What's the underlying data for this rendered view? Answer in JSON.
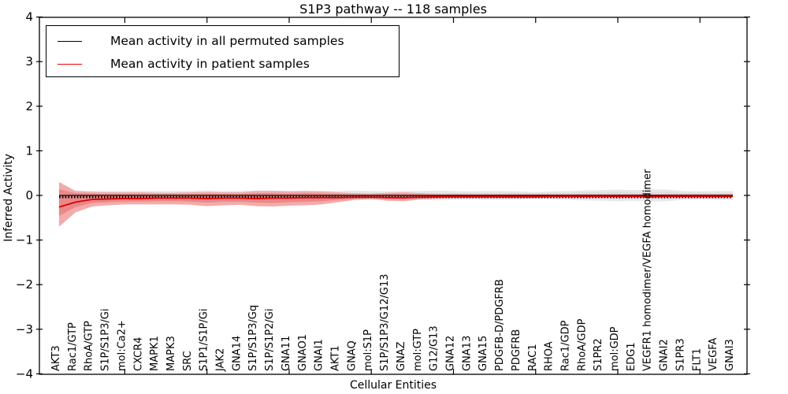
{
  "chart_data": {
    "type": "line",
    "title": "S1P3 pathway -- 118 samples",
    "xlabel": "Cellular Entities",
    "ylabel": "Inferred Activity",
    "ylim": [
      -4,
      4
    ],
    "y_ticks": [
      "4",
      "3",
      "2",
      "1",
      "0",
      "−1",
      "−2",
      "−3",
      "−4"
    ],
    "y_tick_values": [
      4,
      3,
      2,
      1,
      0,
      -1,
      -2,
      -3,
      -4
    ],
    "x_tick_interval": 5,
    "grid": false,
    "legend_position": "upper left",
    "categories": [
      "AKT3",
      "Rac1/GTP",
      "RhoA/GTP",
      "S1P/S1P3/Gi",
      "mol:Ca2+",
      "CXCR4",
      "MAPK1",
      "MAPK3",
      "SRC",
      "S1P1/S1P/Gi",
      "JAK2",
      "GNA14",
      "S1P/S1P3/Gq",
      "S1P/S1P2/Gi",
      "GNA11",
      "GNAO1",
      "GNAI1",
      "AKT1",
      "GNAQ",
      "mol:S1P",
      "S1P/S1P3/G12/G13",
      "GNAZ",
      "mol:GTP",
      "G12/G13",
      "GNA12",
      "GNA13",
      "GNA15",
      "PDGFB-D/PDGFRB",
      "PDGFRB",
      "RAC1",
      "RHOA",
      "Rac1/GDP",
      "RhoA/GDP",
      "S1PR2",
      "mol:GDP",
      "EDG1",
      "VEGFR1 homodimer/VEGFA homodimer",
      "GNAI2",
      "S1PR3",
      "FLT1",
      "VEGFA",
      "GNAI3"
    ],
    "series": [
      {
        "name": "Mean activity in all permuted samples",
        "color": "#000000",
        "values": [
          0,
          0,
          0,
          0,
          0,
          0,
          0,
          0,
          0,
          0,
          0,
          0,
          0,
          0,
          0,
          0,
          0,
          0,
          0,
          0,
          0,
          0,
          0,
          0,
          0,
          0,
          0,
          0,
          0,
          0,
          0,
          0,
          0,
          0,
          0,
          0,
          0,
          0,
          0,
          0,
          0,
          0
        ]
      },
      {
        "name": "Mean activity in patient samples",
        "color": "#dd0000",
        "values": [
          -0.26,
          -0.15,
          -0.09,
          -0.08,
          -0.07,
          -0.07,
          -0.06,
          -0.06,
          -0.06,
          -0.07,
          -0.06,
          -0.06,
          -0.07,
          -0.06,
          -0.06,
          -0.05,
          -0.05,
          -0.05,
          -0.04,
          -0.04,
          -0.05,
          -0.05,
          -0.04,
          -0.03,
          -0.03,
          -0.03,
          -0.03,
          -0.03,
          -0.03,
          -0.03,
          -0.02,
          -0.02,
          -0.02,
          -0.02,
          -0.02,
          -0.02,
          -0.03,
          -0.02,
          -0.02,
          -0.02,
          -0.02,
          -0.02
        ]
      }
    ],
    "bands": [
      {
        "name": "permuted-samples-outer-band",
        "color": "#e8e8e8",
        "hi": [
          0.12,
          0.11,
          0.1,
          0.1,
          0.1,
          0.1,
          0.1,
          0.1,
          0.1,
          0.11,
          0.1,
          0.1,
          0.11,
          0.11,
          0.1,
          0.1,
          0.1,
          0.1,
          0.11,
          0.1,
          0.09,
          0.1,
          0.1,
          0.11,
          0.1,
          0.09,
          0.1,
          0.1,
          0.09,
          0.08,
          0.09,
          0.1,
          0.11,
          0.12,
          0.13,
          0.12,
          0.14,
          0.13,
          0.1,
          0.09,
          0.1,
          0.1
        ],
        "lo": [
          -0.12,
          -0.11,
          -0.1,
          -0.1,
          -0.1,
          -0.1,
          -0.1,
          -0.1,
          -0.1,
          -0.11,
          -0.1,
          -0.1,
          -0.11,
          -0.11,
          -0.1,
          -0.1,
          -0.1,
          -0.1,
          -0.11,
          -0.1,
          -0.09,
          -0.1,
          -0.1,
          -0.11,
          -0.1,
          -0.09,
          -0.1,
          -0.1,
          -0.09,
          -0.08,
          -0.09,
          -0.1,
          -0.11,
          -0.12,
          -0.13,
          -0.12,
          -0.14,
          -0.13,
          -0.1,
          -0.09,
          -0.1,
          -0.1
        ]
      },
      {
        "name": "permuted-samples-inner-band",
        "color": "#dedede",
        "hi": [
          0.07,
          0.06,
          0.06,
          0.06,
          0.06,
          0.06,
          0.06,
          0.06,
          0.06,
          0.06,
          0.06,
          0.06,
          0.06,
          0.06,
          0.06,
          0.06,
          0.06,
          0.06,
          0.06,
          0.06,
          0.06,
          0.06,
          0.06,
          0.06,
          0.06,
          0.06,
          0.06,
          0.06,
          0.06,
          0.05,
          0.06,
          0.06,
          0.07,
          0.07,
          0.08,
          0.07,
          0.08,
          0.08,
          0.06,
          0.06,
          0.06,
          0.06
        ],
        "lo": [
          -0.07,
          -0.06,
          -0.06,
          -0.06,
          -0.06,
          -0.06,
          -0.06,
          -0.06,
          -0.06,
          -0.06,
          -0.06,
          -0.06,
          -0.06,
          -0.06,
          -0.06,
          -0.06,
          -0.06,
          -0.06,
          -0.06,
          -0.06,
          -0.06,
          -0.06,
          -0.06,
          -0.06,
          -0.06,
          -0.06,
          -0.06,
          -0.06,
          -0.06,
          -0.05,
          -0.06,
          -0.06,
          -0.07,
          -0.07,
          -0.08,
          -0.07,
          -0.08,
          -0.08,
          -0.06,
          -0.06,
          -0.06,
          -0.06
        ]
      },
      {
        "name": "patient-samples-outer-band",
        "color": "#f3abab",
        "hi": [
          0.3,
          0.1,
          0.08,
          0.07,
          0.07,
          0.07,
          0.06,
          0.06,
          0.07,
          0.08,
          0.07,
          0.07,
          0.1,
          0.1,
          0.09,
          0.1,
          0.09,
          0.07,
          0.05,
          0.04,
          0.06,
          0.07,
          0.05,
          0.03,
          0.03,
          0.03,
          0.03,
          0.03,
          0.03,
          0.03,
          0.03,
          0.03,
          0.03,
          0.03,
          0.03,
          0.03,
          0.03,
          0.03,
          0.03,
          0.03,
          0.03,
          0.03
        ],
        "lo": [
          -0.7,
          -0.38,
          -0.25,
          -0.22,
          -0.2,
          -0.2,
          -0.2,
          -0.2,
          -0.21,
          -0.24,
          -0.22,
          -0.21,
          -0.24,
          -0.25,
          -0.23,
          -0.22,
          -0.2,
          -0.15,
          -0.1,
          -0.08,
          -0.12,
          -0.13,
          -0.09,
          -0.07,
          -0.06,
          -0.06,
          -0.06,
          -0.06,
          -0.06,
          -0.06,
          -0.05,
          -0.05,
          -0.05,
          -0.05,
          -0.05,
          -0.05,
          -0.05,
          -0.05,
          -0.05,
          -0.05,
          -0.05,
          -0.05
        ]
      },
      {
        "name": "patient-samples-inner-band",
        "color": "#ea8888",
        "hi": [
          0.14,
          0.05,
          0.04,
          0.03,
          0.03,
          0.03,
          0.03,
          0.03,
          0.03,
          0.04,
          0.03,
          0.03,
          0.05,
          0.05,
          0.04,
          0.05,
          0.04,
          0.03,
          0.02,
          0.02,
          0.03,
          0.03,
          0.02,
          0.02,
          0.02,
          0.02,
          0.02,
          0.02,
          0.02,
          0.02,
          0.02,
          0.02,
          0.02,
          0.02,
          0.02,
          0.02,
          0.02,
          0.02,
          0.02,
          0.02,
          0.02,
          0.02
        ],
        "lo": [
          -0.46,
          -0.26,
          -0.17,
          -0.15,
          -0.14,
          -0.14,
          -0.13,
          -0.13,
          -0.14,
          -0.16,
          -0.14,
          -0.14,
          -0.16,
          -0.17,
          -0.15,
          -0.14,
          -0.13,
          -0.1,
          -0.07,
          -0.06,
          -0.08,
          -0.09,
          -0.06,
          -0.05,
          -0.04,
          -0.04,
          -0.04,
          -0.04,
          -0.04,
          -0.04,
          -0.04,
          -0.04,
          -0.04,
          -0.04,
          -0.04,
          -0.04,
          -0.04,
          -0.04,
          -0.04,
          -0.04,
          -0.04,
          -0.04
        ]
      }
    ],
    "legend": {
      "entries": [
        {
          "label": "Mean activity in all permuted samples",
          "color": "#000000"
        },
        {
          "label": "Mean activity in patient samples",
          "color": "#ee0000"
        }
      ]
    }
  }
}
